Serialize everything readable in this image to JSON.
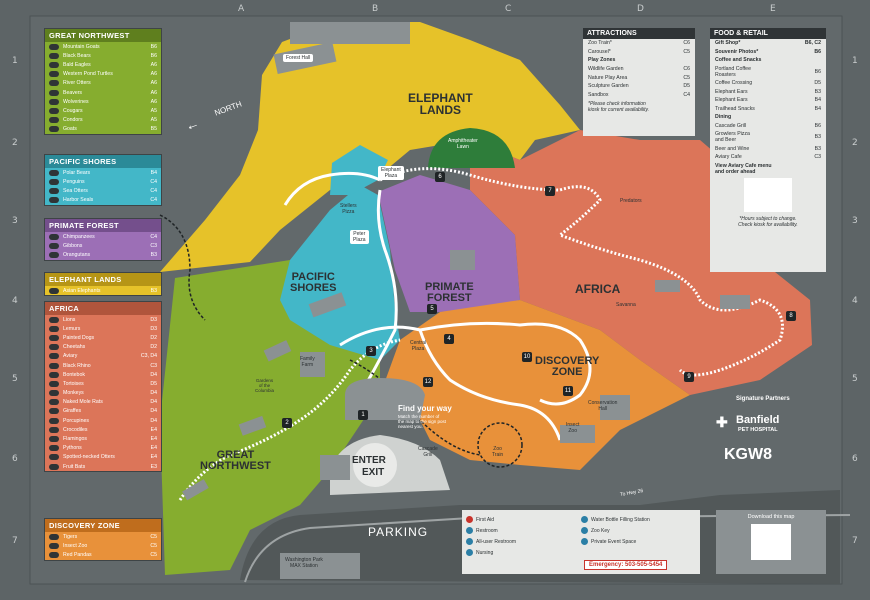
{
  "grid": {
    "columns": [
      "A",
      "B",
      "C",
      "D",
      "E"
    ],
    "rows": [
      "1",
      "2",
      "3",
      "4",
      "5",
      "6",
      "7"
    ]
  },
  "colors": {
    "background": "#5d6466",
    "elephant_lands": "#e6c229",
    "great_northwest": "#86ad2f",
    "pacific_shores": "#43b7c8",
    "primate_forest": "#9c6fb6",
    "africa": "#dc7559",
    "discovery_zone": "#e8913a",
    "amphitheater": "#2e7d3a"
  },
  "legend": {
    "great_northwest": {
      "title": "GREAT NORTHWEST",
      "items": [
        {
          "name": "Mountain Goats",
          "grid": "B6"
        },
        {
          "name": "Black Bears",
          "grid": "B6"
        },
        {
          "name": "Bald Eagles",
          "grid": "A6"
        },
        {
          "name": "Western Pond Turtles",
          "grid": "A6"
        },
        {
          "name": "River Otters",
          "grid": "A6"
        },
        {
          "name": "Beavers",
          "grid": "A6"
        },
        {
          "name": "Wolverines",
          "grid": "A6"
        },
        {
          "name": "Cougars",
          "grid": "A5"
        },
        {
          "name": "Condors",
          "grid": "A5"
        },
        {
          "name": "Goats",
          "grid": "B5"
        }
      ]
    },
    "pacific_shores": {
      "title": "PACIFIC SHORES",
      "items": [
        {
          "name": "Polar Bears",
          "grid": "B4"
        },
        {
          "name": "Penguins",
          "grid": "C4"
        },
        {
          "name": "Sea Otters",
          "grid": "C4"
        },
        {
          "name": "Harbor Seals",
          "grid": "C4"
        }
      ]
    },
    "primate_forest": {
      "title": "PRIMATE FOREST",
      "items": [
        {
          "name": "Chimpanzees",
          "grid": "C4"
        },
        {
          "name": "Gibbons",
          "grid": "C3"
        },
        {
          "name": "Orangutans",
          "grid": "B3"
        }
      ]
    },
    "elephant_lands": {
      "title": "ELEPHANT LANDS",
      "items": [
        {
          "name": "Asian Elephants",
          "grid": "B3"
        }
      ]
    },
    "africa": {
      "title": "AFRICA",
      "items": [
        {
          "name": "Lions",
          "grid": "D3"
        },
        {
          "name": "Lemurs",
          "grid": "D3"
        },
        {
          "name": "Painted Dogs",
          "grid": "D2"
        },
        {
          "name": "Cheetahs",
          "grid": "D2"
        },
        {
          "name": "Aviary",
          "grid": "C3, D4"
        },
        {
          "name": "Black Rhino",
          "grid": "C3"
        },
        {
          "name": "Bontebok",
          "grid": "D4"
        },
        {
          "name": "Tortoises",
          "grid": "D5"
        },
        {
          "name": "Monkeys",
          "grid": "D4"
        },
        {
          "name": "Naked Mole Rats",
          "grid": "D4"
        },
        {
          "name": "Giraffes",
          "grid": "D4"
        },
        {
          "name": "Porcupines",
          "grid": "D4"
        },
        {
          "name": "Crocodiles",
          "grid": "E4"
        },
        {
          "name": "Flamingos",
          "grid": "E4"
        },
        {
          "name": "Pythons",
          "grid": "E4"
        },
        {
          "name": "Spotted-necked Otters",
          "grid": "E4"
        },
        {
          "name": "Fruit Bats",
          "grid": "E3"
        }
      ]
    },
    "discovery_zone": {
      "title": "DISCOVERY ZONE",
      "items": [
        {
          "name": "Tigers",
          "grid": "C5"
        },
        {
          "name": "Insect Zoo",
          "grid": "C5"
        },
        {
          "name": "Red Pandas",
          "grid": "C5"
        }
      ]
    }
  },
  "zones": {
    "elephant_lands": "ELEPHANT\nLANDS",
    "pacific_shores": "PACIFIC\nSHORES",
    "primate_forest": "PRIMATE\nFOREST",
    "africa": "AFRICA",
    "discovery_zone": "DISCOVERY\nZONE",
    "great_northwest": "GREAT\nNORTHWEST"
  },
  "places": {
    "forest_hall": "Forest Hall",
    "elephant_plaza": "Elephant\nPlaza",
    "amphitheater": "Amphitheater\nLawn",
    "steller_pizza": "Stellers\nPizza",
    "pacific_plaza": "Peter\nPlaza",
    "family_farm": "Family\nFarm",
    "gardens": "Gardens\nof the\nColumbia",
    "central_plaza": "Central\nPlaza",
    "savanna": "Savanna",
    "predators": "Predators",
    "cascade_grill": "Cascade\nGrill",
    "conservation_hall": "Conservation\nHall",
    "insect_zoo": "Insect\nZoo",
    "zoo_train": "Zoo\nTrain",
    "enter": "ENTER",
    "exit": "EXIT",
    "parking": "PARKING",
    "max_station": "Washington Park\nMAX Station",
    "north": "NORTH",
    "to_hwy": "To Hwy 26",
    "find_way_title": "Find your way",
    "find_way_text": "Match the number of\nthe map to the sign post\nnearest you."
  },
  "numbers": [
    "1",
    "2",
    "3",
    "4",
    "5",
    "6",
    "7",
    "8",
    "9",
    "10",
    "11",
    "12"
  ],
  "attractions": {
    "title": "ATTRACTIONS",
    "items": [
      {
        "name": "Zoo Train*",
        "grid": "C6"
      },
      {
        "name": "Carousel*",
        "grid": "C5"
      }
    ],
    "play_title": "Play Zones",
    "play_items": [
      {
        "name": "Wildlife Garden",
        "grid": "C6"
      },
      {
        "name": "Nature Play Area",
        "grid": "C5"
      },
      {
        "name": "Sculpture Garden",
        "grid": "D5"
      },
      {
        "name": "Sandbox",
        "grid": "C4"
      }
    ],
    "note": "*Please check information\nkiosk for current availability."
  },
  "food": {
    "title": "FOOD & RETAIL",
    "gift_shop": {
      "name": "Gift Shop*",
      "grid": "B6, C2"
    },
    "photos": {
      "name": "Souvenir Photos*",
      "grid": "B6"
    },
    "coffee_title": "Coffee and Snacks",
    "coffee_items": [
      {
        "name": "Portland Coffee\nRoasters",
        "grid": "B6"
      },
      {
        "name": "Coffee Crossing",
        "grid": "D5"
      },
      {
        "name": "Elephant Ears",
        "grid": "B3"
      },
      {
        "name": "Elephant Ears",
        "grid": "B4"
      },
      {
        "name": "Trailhead Snacks",
        "grid": "B4"
      }
    ],
    "dining_title": "Dining",
    "dining_items": [
      {
        "name": "Cascade Grill",
        "grid": "B6"
      },
      {
        "name": "Growlers Pizza\nand Beer",
        "grid": "B3"
      },
      {
        "name": "Beer and Wine",
        "grid": "B3"
      },
      {
        "name": "Aviary Cafe",
        "grid": "C3"
      }
    ],
    "menu_note": "View Aviary Cafe menu\nand order ahead",
    "hours_note": "*Hours subject to change.\nCheck kiosk for availability."
  },
  "key": {
    "items": [
      {
        "name": "First Aid"
      },
      {
        "name": "Restroom"
      },
      {
        "name": "All-user Restroom"
      },
      {
        "name": "Nursing"
      },
      {
        "name": "Water Bottle Filling Station"
      },
      {
        "name": "Zoo Key"
      },
      {
        "name": "Private Event Space"
      }
    ],
    "emergency": "Emergency: 503-505-5454"
  },
  "partners": {
    "title": "Signature Partners",
    "banfield_1": "Banfield",
    "banfield_2": "PET HOSPITAL",
    "kgw": "KGW8"
  },
  "download": "Download this map"
}
